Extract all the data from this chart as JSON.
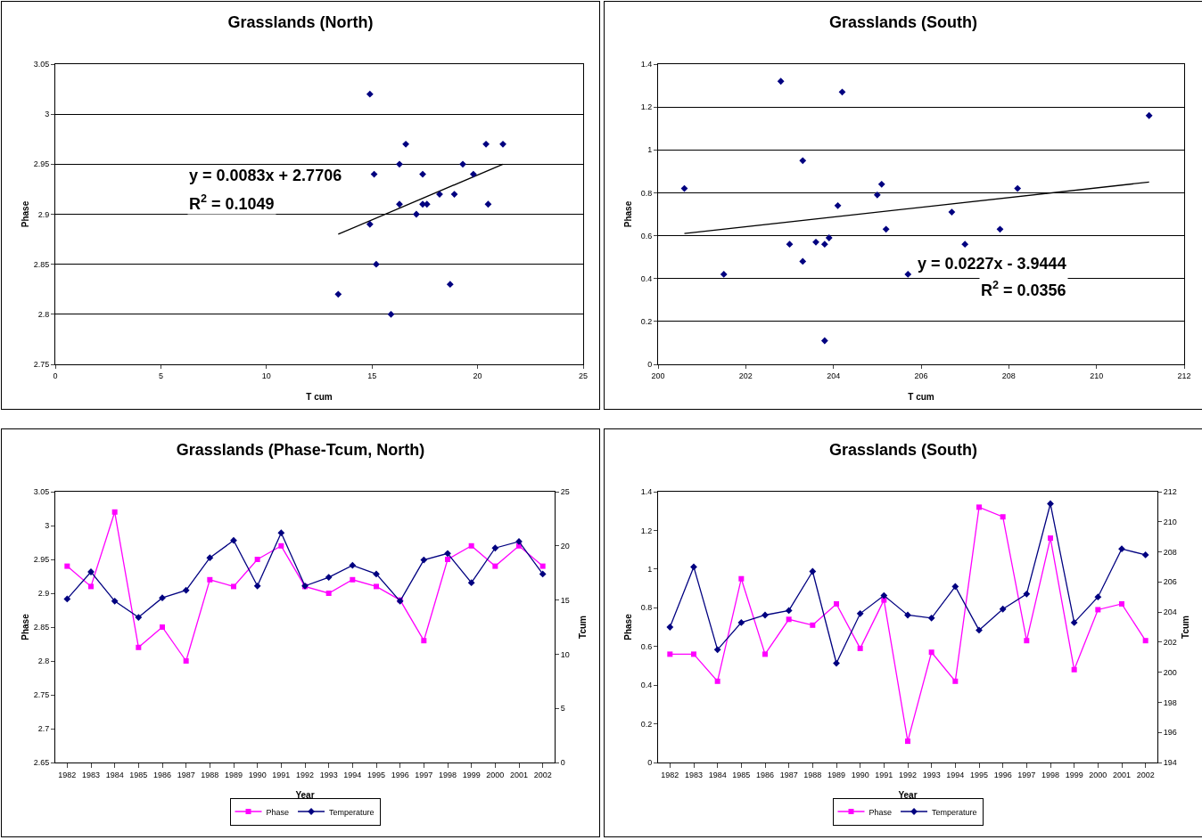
{
  "chart_data": [
    {
      "type": "scatter",
      "title": "Grasslands (North)",
      "xlabel": "T cum",
      "ylabel": "Phase",
      "xlim": [
        0,
        25
      ],
      "xticks": [
        0,
        5,
        10,
        15,
        20,
        25
      ],
      "ylim": [
        2.75,
        3.05
      ],
      "yticks": [
        2.75,
        2.8,
        2.85,
        2.9,
        2.95,
        3,
        3.05
      ],
      "grid": "y",
      "annotations": [
        "y = 0.0083x + 2.7706",
        "R$^{2}$ = 0.1049"
      ],
      "series": [
        {
          "color": "#000080",
          "marker": "diamond",
          "x": [
            15.1,
            17.6,
            14.9,
            13.4,
            15.2,
            15.9,
            18.9,
            20.5,
            16.3,
            21.2,
            16.3,
            17.1,
            18.2,
            17.4,
            14.9,
            18.7,
            19.3,
            16.6,
            19.8,
            20.4,
            17.4
          ],
          "values": [
            2.94,
            2.91,
            3.02,
            2.82,
            2.85,
            2.8,
            2.92,
            2.91,
            2.95,
            2.97,
            2.91,
            2.9,
            2.92,
            2.91,
            2.89,
            2.83,
            2.95,
            2.97,
            2.94,
            2.97,
            2.94
          ]
        },
        {
          "type": "line",
          "color": "#000000",
          "marker": "none",
          "x": [
            13.4,
            21.2
          ],
          "values": [
            2.88,
            2.95
          ]
        }
      ]
    },
    {
      "type": "scatter",
      "title": "Grasslands (South)",
      "xlabel": "T cum",
      "ylabel": "Phase",
      "xlim": [
        200,
        212
      ],
      "xticks": [
        200,
        202,
        204,
        206,
        208,
        210,
        212
      ],
      "ylim": [
        0,
        1.4
      ],
      "yticks": [
        0,
        0.2,
        0.4,
        0.6,
        0.8,
        1,
        1.2,
        1.4
      ],
      "grid": "y",
      "annotations": [
        "y = 0.0227x - 3.9444",
        "R$^{2}$ = 0.0356"
      ],
      "series": [
        {
          "color": "#000080",
          "marker": "diamond",
          "x": [
            203.0,
            207.0,
            201.5,
            203.3,
            203.8,
            204.1,
            206.7,
            200.6,
            203.9,
            205.1,
            203.8,
            203.6,
            205.7,
            202.8,
            204.2,
            205.2,
            211.2,
            203.3,
            205.0,
            208.2,
            207.8
          ],
          "values": [
            0.56,
            0.56,
            0.42,
            0.95,
            0.56,
            0.74,
            0.71,
            0.82,
            0.59,
            0.84,
            0.11,
            0.57,
            0.42,
            1.32,
            1.27,
            0.63,
            1.16,
            0.48,
            0.79,
            0.82,
            0.63
          ]
        },
        {
          "type": "line",
          "color": "#000000",
          "marker": "none",
          "x": [
            200.6,
            211.2
          ],
          "values": [
            0.61,
            0.85
          ]
        }
      ]
    },
    {
      "type": "line",
      "title": "Grasslands (Phase-Tcum, North)",
      "xlabel": "Year",
      "ylabel": "Phase",
      "y2label": "Tcum",
      "categories": [
        "1982",
        "1983",
        "1984",
        "1985",
        "1986",
        "1987",
        "1988",
        "1989",
        "1990",
        "1991",
        "1992",
        "1993",
        "1994",
        "1995",
        "1996",
        "1997",
        "1998",
        "1999",
        "2000",
        "2001",
        "2002"
      ],
      "ylim": [
        2.65,
        3.05
      ],
      "yticks": [
        2.65,
        2.7,
        2.75,
        2.8,
        2.85,
        2.9,
        2.95,
        3,
        3.05
      ],
      "y2lim": [
        0,
        25
      ],
      "y2ticks": [
        0,
        5,
        10,
        15,
        20,
        25
      ],
      "legend": "bottom",
      "series": [
        {
          "name": "Phase",
          "color": "#ff00ff",
          "marker": "square",
          "values": [
            2.94,
            2.91,
            3.02,
            2.82,
            2.85,
            2.8,
            2.92,
            2.91,
            2.95,
            2.97,
            2.91,
            2.9,
            2.92,
            2.91,
            2.89,
            2.83,
            2.95,
            2.97,
            2.94,
            2.97,
            2.94
          ]
        },
        {
          "name": "Temperature",
          "color": "#000080",
          "marker": "diamond",
          "axis": "y2",
          "values": [
            15.1,
            17.6,
            14.9,
            13.4,
            15.2,
            15.9,
            18.9,
            20.5,
            16.3,
            21.2,
            16.3,
            17.1,
            18.2,
            17.4,
            14.9,
            18.7,
            19.3,
            16.6,
            19.8,
            20.4,
            17.4
          ]
        }
      ]
    },
    {
      "type": "line",
      "title": "Grasslands (South)",
      "xlabel": "Year",
      "ylabel": "Phase",
      "y2label": "Tcum",
      "categories": [
        "1982",
        "1983",
        "1984",
        "1985",
        "1986",
        "1987",
        "1988",
        "1989",
        "1990",
        "1991",
        "1992",
        "1993",
        "1994",
        "1995",
        "1996",
        "1997",
        "1998",
        "1999",
        "2000",
        "2001",
        "2002"
      ],
      "ylim": [
        0,
        1.4
      ],
      "yticks": [
        0,
        0.2,
        0.4,
        0.6,
        0.8,
        1,
        1.2,
        1.4
      ],
      "y2lim": [
        194,
        212
      ],
      "y2ticks": [
        194,
        196,
        198,
        200,
        202,
        204,
        206,
        208,
        210,
        212
      ],
      "legend": "bottom",
      "series": [
        {
          "name": "Phase",
          "color": "#ff00ff",
          "marker": "square",
          "values": [
            0.56,
            0.56,
            0.42,
            0.95,
            0.56,
            0.74,
            0.71,
            0.82,
            0.59,
            0.84,
            0.11,
            0.57,
            0.42,
            1.32,
            1.27,
            0.63,
            1.16,
            0.48,
            0.79,
            0.82,
            0.63
          ]
        },
        {
          "name": "Temperature",
          "color": "#000080",
          "marker": "diamond",
          "axis": "y2",
          "values": [
            203.0,
            207.0,
            201.5,
            203.3,
            203.8,
            204.1,
            206.7,
            200.6,
            203.9,
            205.1,
            203.8,
            203.6,
            205.7,
            202.8,
            204.2,
            205.2,
            211.2,
            203.3,
            205.0,
            208.2,
            207.8
          ]
        }
      ]
    }
  ]
}
